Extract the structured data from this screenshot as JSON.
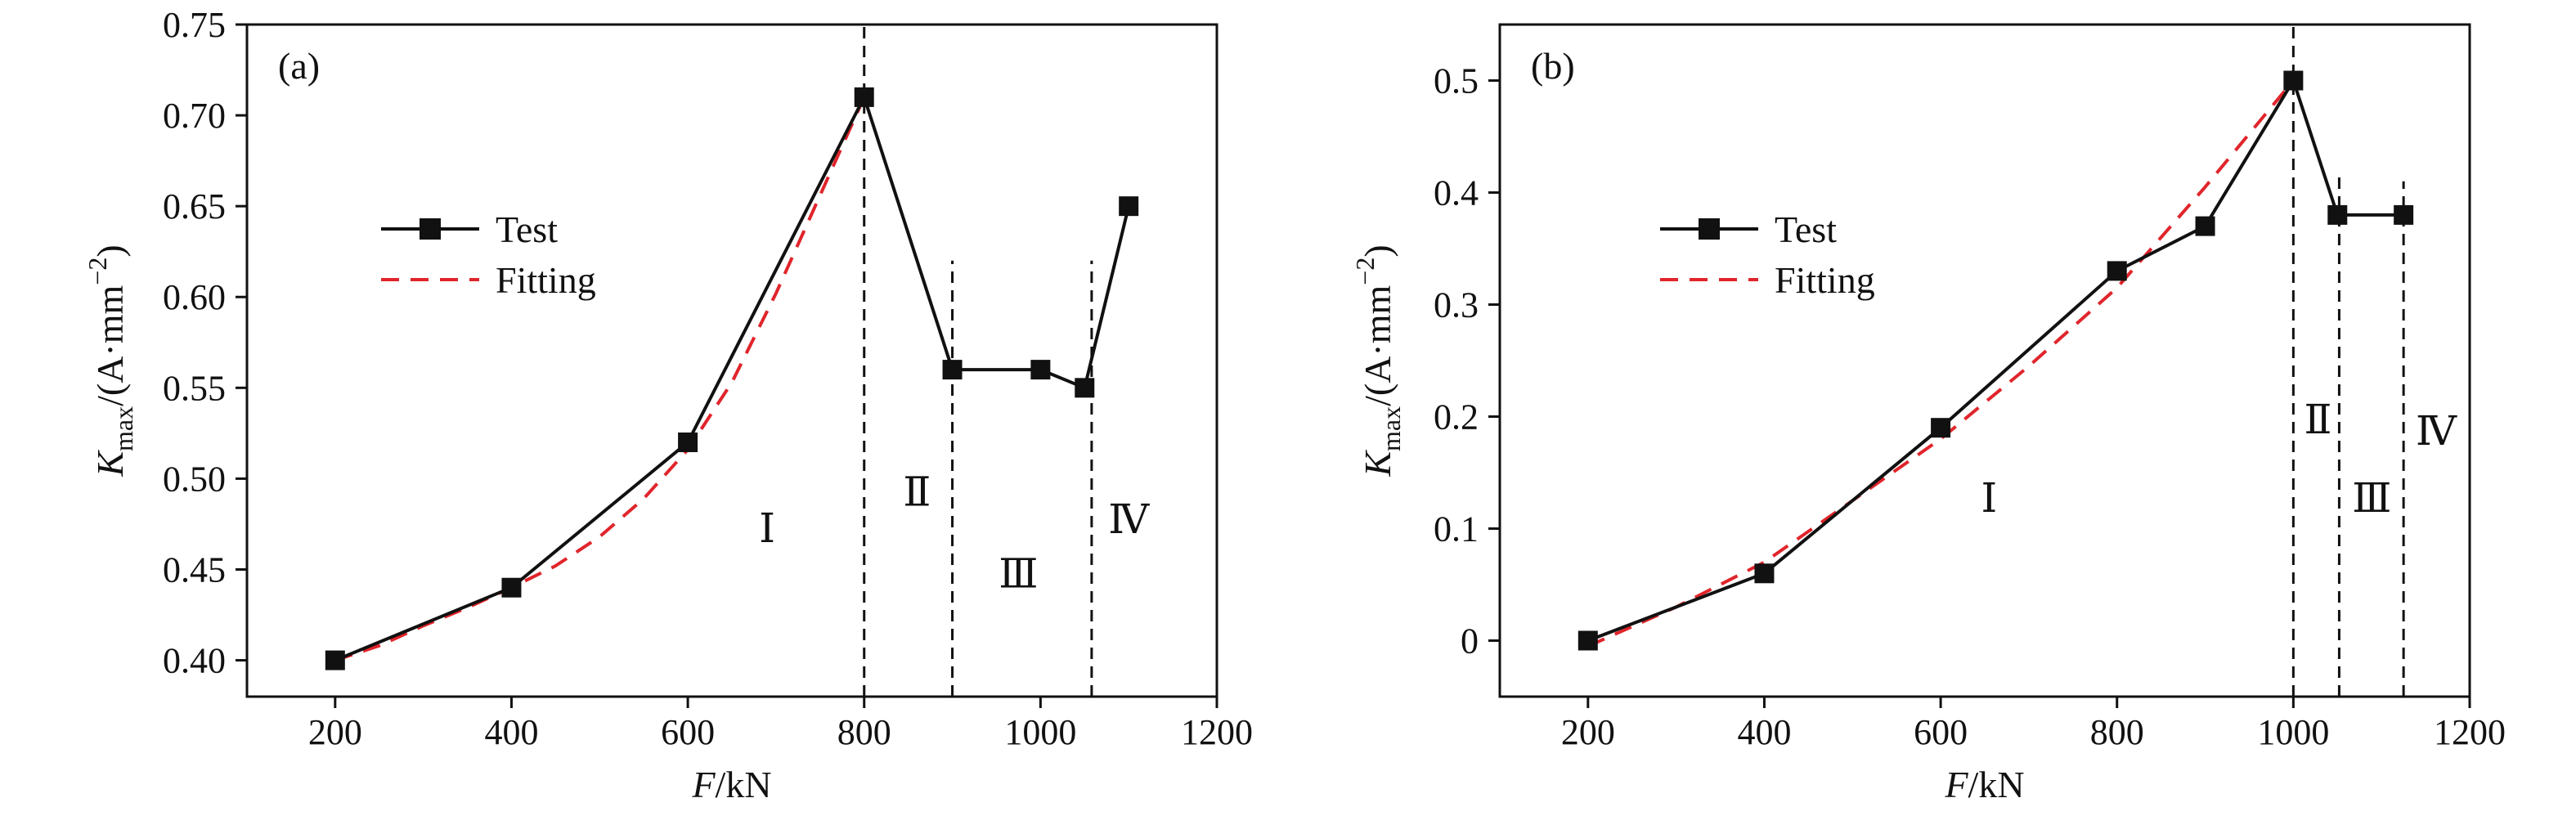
{
  "chart_data": [
    {
      "type": "line",
      "panel_label": "(a)",
      "xlabel": {
        "italic": "F",
        "rest": "/kN"
      },
      "ylabel": {
        "italic": "K",
        "sub": "max",
        "rest": "/(A·mm",
        "sup": "−2",
        "close": ")"
      },
      "xlim": [
        100,
        1200
      ],
      "ylim": [
        0.38,
        0.75
      ],
      "xticks": [
        200,
        400,
        600,
        800,
        1000,
        1200
      ],
      "yticks": [
        0.4,
        0.45,
        0.5,
        0.55,
        0.6,
        0.65,
        0.7,
        0.75
      ],
      "ytick_labels": [
        "0.40",
        "0.45",
        "0.50",
        "0.55",
        "0.60",
        "0.65",
        "0.70",
        "0.75"
      ],
      "series": [
        {
          "name": "Test",
          "color": "#111111",
          "style": "solid",
          "marker": "square",
          "x": [
            200,
            400,
            600,
            800,
            900,
            1000,
            1050,
            1100
          ],
          "y": [
            0.4,
            0.44,
            0.52,
            0.71,
            0.56,
            0.56,
            0.55,
            0.65
          ]
        },
        {
          "name": "Fitting",
          "color": "#e0252b",
          "style": "dashed",
          "x": [
            200,
            250,
            300,
            350,
            400,
            450,
            500,
            550,
            600,
            650,
            700,
            750,
            800
          ],
          "y": [
            0.4,
            0.408,
            0.419,
            0.429,
            0.44,
            0.452,
            0.468,
            0.489,
            0.516,
            0.553,
            0.602,
            0.656,
            0.71
          ]
        }
      ],
      "vlines": [
        {
          "x": 800,
          "y_top": 0.75
        },
        {
          "x": 900,
          "y_top": 0.62
        },
        {
          "x": 1058,
          "y_top": 0.62
        }
      ],
      "regions": [
        {
          "label": "Ⅰ",
          "x": 690,
          "y": 0.465
        },
        {
          "label": "Ⅱ",
          "x": 860,
          "y": 0.485
        },
        {
          "label": "Ⅲ",
          "x": 975,
          "y": 0.44
        },
        {
          "label": "Ⅳ",
          "x": 1100,
          "y": 0.47
        }
      ],
      "legend_position": "upper-left"
    },
    {
      "type": "line",
      "panel_label": "(b)",
      "xlabel": {
        "italic": "F",
        "rest": "/kN"
      },
      "ylabel": {
        "italic": "K",
        "sub": "max",
        "rest": "/(A·mm",
        "sup": "−2",
        "close": ")"
      },
      "xlim": [
        100,
        1200
      ],
      "ylim": [
        -0.05,
        0.55
      ],
      "xticks": [
        200,
        400,
        600,
        800,
        1000,
        1200
      ],
      "yticks": [
        0,
        0.1,
        0.2,
        0.3,
        0.4,
        0.5
      ],
      "ytick_labels": [
        "0",
        "0.1",
        "0.2",
        "0.3",
        "0.4",
        "0.5"
      ],
      "series": [
        {
          "name": "Test",
          "color": "#111111",
          "style": "solid",
          "marker": "square",
          "x": [
            200,
            400,
            600,
            800,
            900,
            1000,
            1050,
            1125
          ],
          "y": [
            0,
            0.06,
            0.19,
            0.33,
            0.37,
            0.5,
            0.38,
            0.38
          ]
        },
        {
          "name": "Fitting",
          "color": "#e0252b",
          "style": "dashed",
          "x": [
            200,
            300,
            400,
            500,
            600,
            700,
            800,
            900,
            1000
          ],
          "y": [
            -0.005,
            0.03,
            0.07,
            0.125,
            0.18,
            0.245,
            0.315,
            0.405,
            0.5
          ]
        }
      ],
      "vlines": [
        {
          "x": 1000,
          "y_top": 0.55
        },
        {
          "x": 1052,
          "y_top": 0.42
        },
        {
          "x": 1125,
          "y_top": 0.41
        }
      ],
      "regions": [
        {
          "label": "Ⅰ",
          "x": 655,
          "y": 0.115
        },
        {
          "label": "Ⅱ",
          "x": 1028,
          "y": 0.185
        },
        {
          "label": "Ⅲ",
          "x": 1089,
          "y": 0.115
        },
        {
          "label": "Ⅳ",
          "x": 1162,
          "y": 0.175
        }
      ],
      "legend_position": "upper-left"
    }
  ]
}
